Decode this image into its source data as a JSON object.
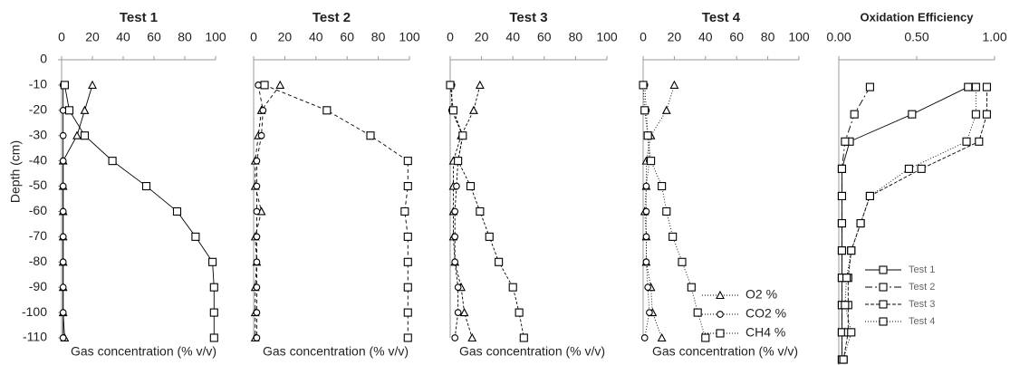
{
  "chart_data": [
    {
      "type": "line",
      "title": "Test 1",
      "xlabel": "Gas concentration (% v/v)",
      "ylabel": "Depth (cm)",
      "xlim": [
        0,
        100
      ],
      "xticks": [
        0,
        20,
        40,
        60,
        80,
        100
      ],
      "ylim": [
        0,
        -110
      ],
      "yticks": [
        0,
        -10,
        -20,
        -30,
        -40,
        -50,
        -60,
        -70,
        -80,
        -90,
        -100,
        -110
      ],
      "legend": false,
      "y": [
        -10,
        -20,
        -30,
        -40,
        -50,
        -60,
        -70,
        -80,
        -90,
        -100,
        -110
      ],
      "series": [
        {
          "name": "O2 %",
          "marker": "triangle",
          "color": "#000000",
          "dash": "none",
          "x": [
            20,
            15,
            10,
            1,
            1,
            1,
            1,
            1,
            1,
            1,
            2
          ]
        },
        {
          "name": "CO2 %",
          "marker": "circle",
          "color": "#000000",
          "dash": "none",
          "x": [
            1,
            1,
            1,
            1,
            1,
            1,
            1,
            1,
            1,
            1,
            1
          ]
        },
        {
          "name": "CH4 %",
          "marker": "square",
          "color": "#000000",
          "dash": "none",
          "x": [
            2,
            5,
            15,
            33,
            55,
            75,
            87,
            98,
            99,
            99,
            99
          ]
        }
      ]
    },
    {
      "type": "line",
      "title": "Test 2",
      "xlabel": "Gas concentration (% v/v)",
      "xlim": [
        0,
        100
      ],
      "xticks": [
        0,
        20,
        40,
        60,
        80,
        100
      ],
      "ylim": [
        0,
        -110
      ],
      "legend": false,
      "y": [
        -10,
        -20,
        -30,
        -40,
        -50,
        -60,
        -70,
        -80,
        -90,
        -100,
        -110
      ],
      "series": [
        {
          "name": "O2 %",
          "marker": "triangle",
          "color": "#000000",
          "dash": "4,3",
          "x": [
            17,
            5,
            3,
            1,
            1,
            5,
            1,
            2,
            1,
            1,
            1
          ]
        },
        {
          "name": "CO2 %",
          "marker": "circle",
          "color": "#000000",
          "dash": "4,3",
          "x": [
            3,
            6,
            5,
            2,
            2,
            2,
            2,
            2,
            2,
            2,
            2
          ]
        },
        {
          "name": "CH4 %",
          "marker": "square",
          "color": "#000000",
          "dash": "4,3",
          "x": [
            7,
            47,
            75,
            99,
            99,
            97,
            99,
            99,
            99,
            99,
            99
          ]
        }
      ]
    },
    {
      "type": "line",
      "title": "Test 3",
      "xlabel": "Gas concentration (% v/v)",
      "xlim": [
        0,
        100
      ],
      "xticks": [
        0,
        20,
        40,
        60,
        80,
        100
      ],
      "ylim": [
        0,
        -110
      ],
      "legend": false,
      "y": [
        -10,
        -20,
        -30,
        -40,
        -50,
        -60,
        -70,
        -80,
        -90,
        -100,
        -110
      ],
      "series": [
        {
          "name": "O2 %",
          "marker": "triangle",
          "color": "#000000",
          "dash": "3,2",
          "x": [
            19,
            15,
            7,
            2,
            2,
            2,
            2,
            3,
            7,
            9,
            14
          ]
        },
        {
          "name": "CO2 %",
          "marker": "circle",
          "color": "#000000",
          "dash": "3,2",
          "x": [
            1,
            1,
            8,
            5,
            4,
            3,
            3,
            3,
            5,
            5,
            3
          ]
        },
        {
          "name": "CH4 %",
          "marker": "square",
          "color": "#000000",
          "dash": "3,2",
          "x": [
            0,
            2,
            8,
            5,
            13,
            19,
            25,
            31,
            40,
            44,
            47
          ]
        }
      ]
    },
    {
      "type": "line",
      "title": "Test 4",
      "xlabel": "Gas concentration (% v/v)",
      "xlim": [
        0,
        100
      ],
      "xticks": [
        0,
        20,
        40,
        60,
        80,
        100
      ],
      "ylim": [
        0,
        -110
      ],
      "legend": true,
      "y": [
        -10,
        -20,
        -30,
        -40,
        -50,
        -60,
        -70,
        -80,
        -90,
        -100,
        -110
      ],
      "series": [
        {
          "name": "O2 %",
          "marker": "triangle",
          "color": "#000000",
          "dash": "1,2",
          "x": [
            20,
            15,
            5,
            2,
            2,
            1,
            2,
            2,
            5,
            6,
            12
          ]
        },
        {
          "name": "CO2 %",
          "marker": "circle",
          "color": "#000000",
          "dash": "1,2",
          "x": [
            1,
            2,
            3,
            4,
            2,
            2,
            2,
            2,
            3,
            4,
            1
          ]
        },
        {
          "name": "CH4 %",
          "marker": "square",
          "color": "#000000",
          "dash": "1,2",
          "x": [
            0,
            1,
            3,
            5,
            12,
            15,
            19,
            25,
            31,
            35,
            40
          ]
        }
      ]
    },
    {
      "type": "line",
      "title": "Oxidation Efficiency",
      "xlim": [
        0,
        1
      ],
      "xticks": [
        {
          "value": 0,
          "label": "0.00"
        },
        {
          "value": 0.5,
          "label": "0.50"
        },
        {
          "value": 1,
          "label": "1.00"
        }
      ],
      "ylim": [
        0,
        -110
      ],
      "legend": true,
      "y": [
        -10,
        -20,
        -30,
        -40,
        -50,
        -60,
        -70,
        -80,
        -90,
        -100,
        -110
      ],
      "series": [
        {
          "name": "Test 1",
          "marker": "square",
          "color": "#000000",
          "dash": "none",
          "x": [
            0.83,
            0.47,
            0.07,
            0.02,
            0.02,
            0.02,
            0.02,
            0.02,
            0.02,
            0.02,
            0.02
          ]
        },
        {
          "name": "Test 2",
          "marker": "square",
          "color": "#000000",
          "dash": "8,3,2,3",
          "x": [
            0.2,
            0.1,
            0.04,
            0.02,
            0.02,
            0.02,
            0.02,
            0.02,
            0.02,
            0.02,
            0.02
          ]
        },
        {
          "name": "Test 3",
          "marker": "square",
          "color": "#000000",
          "dash": "4,2",
          "x": [
            0.95,
            0.95,
            0.9,
            0.53,
            0.2,
            0.14,
            0.08,
            0.06,
            0.06,
            0.06,
            0.03
          ]
        },
        {
          "name": "Test 4",
          "marker": "square",
          "color": "#000000",
          "dash": "1,2",
          "x": [
            0.88,
            0.88,
            0.82,
            0.45,
            0.2,
            0.14,
            0.08,
            0.05,
            0.04,
            0.08,
            0.03
          ]
        }
      ]
    }
  ]
}
